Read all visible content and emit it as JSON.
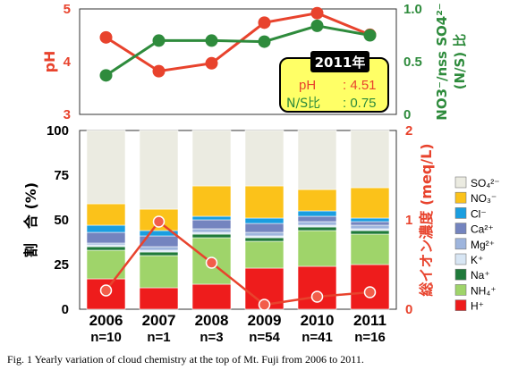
{
  "caption": "Fig. 1 Yearly variation of cloud chemistry at the top of Mt. Fuji from 2006 to 2011.",
  "chart_data": [
    {
      "type": "line",
      "panel": "top",
      "categories": [
        "2006",
        "2007",
        "2008",
        "2009",
        "2010",
        "2011"
      ],
      "series": [
        {
          "name": "pH",
          "axis": "left",
          "color": "#e8432d",
          "values": [
            4.46,
            3.82,
            3.97,
            4.74,
            4.92,
            4.51
          ]
        },
        {
          "name": "N/S",
          "axis": "right",
          "color": "#2e8b3c",
          "values": [
            0.37,
            0.7,
            0.7,
            0.69,
            0.84,
            0.75
          ]
        }
      ],
      "yleft": {
        "label": "pH",
        "ticks": [
          "3",
          "4",
          "5"
        ],
        "lim": [
          3,
          5
        ],
        "color": "#e8432d"
      },
      "yright": {
        "label_line1": "NO3⁻/nss SO4²⁻",
        "label_line2": "(N/S) 比",
        "ticks": [
          "0",
          "0.5",
          "1.0"
        ],
        "lim": [
          0,
          1.0
        ],
        "color": "#2e8b3c"
      },
      "callout": {
        "title": "2011年",
        "ph_label": "pH",
        "ph_value": ": 4.51",
        "ns_label": "N/S比",
        "ns_value": ": 0.75"
      }
    },
    {
      "type": "stacked_bar",
      "panel": "bottom",
      "categories": [
        "2006",
        "2007",
        "2008",
        "2009",
        "2010",
        "2011"
      ],
      "n_labels": [
        "n=10",
        "n=1",
        "n=3",
        "n=54",
        "n=41",
        "n=16"
      ],
      "ylabel": "割　合 (%)",
      "ylim": [
        0,
        100
      ],
      "yticks": [
        "0",
        "25",
        "50",
        "75",
        "100"
      ],
      "y2label": "総イオン濃度 (meq/L)",
      "y2lim": [
        0,
        2
      ],
      "y2ticks": [
        "0",
        "1",
        "2"
      ],
      "series": [
        {
          "name": "H⁺",
          "color": "#ee1c1c",
          "values": [
            17,
            12,
            14,
            23,
            24,
            25
          ]
        },
        {
          "name": "NH₄⁺",
          "color": "#9fd46a",
          "values": [
            16,
            18,
            26,
            15,
            20,
            17
          ]
        },
        {
          "name": "Na⁺",
          "color": "#1f7a3a",
          "values": [
            2,
            2,
            2,
            2,
            2,
            2
          ]
        },
        {
          "name": "K⁺",
          "color": "#d8e6f4",
          "values": [
            1,
            1,
            1,
            1,
            1,
            1
          ]
        },
        {
          "name": "Mg²⁺",
          "color": "#9eb5dd",
          "values": [
            1,
            2,
            2,
            2,
            2,
            2
          ]
        },
        {
          "name": "Ca²⁺",
          "color": "#7484bf",
          "values": [
            6,
            6,
            5,
            5,
            3,
            2
          ]
        },
        {
          "name": "Cl⁻",
          "color": "#1a9ee0",
          "values": [
            4,
            3,
            2,
            3,
            3,
            2
          ]
        },
        {
          "name": "NO₃⁻",
          "color": "#fbc21a",
          "values": [
            12,
            12,
            17,
            18,
            12,
            17
          ]
        },
        {
          "name": "SO₄²⁻",
          "color": "#ebebe1",
          "values": [
            41,
            44,
            31,
            31,
            33,
            32
          ]
        }
      ],
      "total_ion": {
        "name": "総イオン濃度",
        "color": "#e8432d",
        "values": [
          0.21,
          0.98,
          0.52,
          0.05,
          0.14,
          0.19
        ]
      }
    }
  ]
}
